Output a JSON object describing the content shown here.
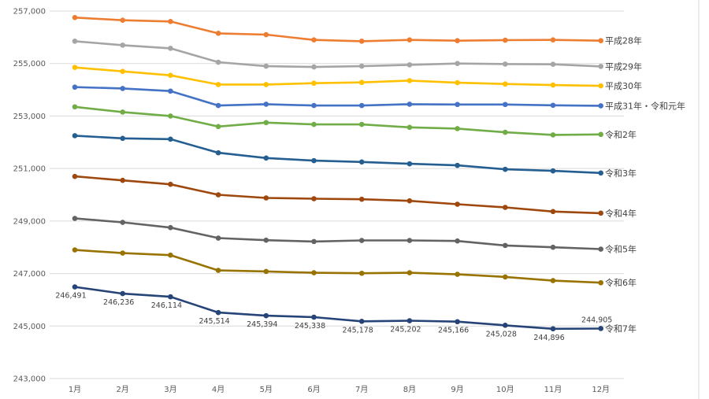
{
  "chart_data": {
    "type": "line",
    "title": "",
    "xlabel": "",
    "ylabel": "",
    "ylim": [
      243000,
      257000
    ],
    "yticks": [
      243000,
      245000,
      247000,
      249000,
      251000,
      253000,
      255000,
      257000
    ],
    "ytick_labels": [
      "243,000",
      "245,000",
      "247,000",
      "249,000",
      "251,000",
      "253,000",
      "255,000",
      "257,000"
    ],
    "grid": true,
    "legend": "inline-right",
    "categories": [
      "1月",
      "2月",
      "3月",
      "4月",
      "5月",
      "6月",
      "7月",
      "8月",
      "9月",
      "10月",
      "11月",
      "12月"
    ],
    "series": [
      {
        "name": "平成28年",
        "color": "#ED7D31",
        "values": [
          256750,
          256650,
          256600,
          256150,
          256100,
          255900,
          255850,
          255900,
          255870,
          255890,
          255900,
          255870
        ]
      },
      {
        "name": "平成29年",
        "color": "#A5A5A5",
        "values": [
          255850,
          255700,
          255580,
          255050,
          254900,
          254870,
          254900,
          254950,
          255000,
          254980,
          254970,
          254890
        ]
      },
      {
        "name": "平成30年",
        "color": "#FFC000",
        "values": [
          254850,
          254700,
          254550,
          254200,
          254200,
          254250,
          254280,
          254350,
          254270,
          254220,
          254180,
          254150
        ]
      },
      {
        "name": "平成31年・令和元年",
        "color": "#4472C4",
        "values": [
          254100,
          254050,
          253950,
          253400,
          253450,
          253400,
          253400,
          253450,
          253440,
          253440,
          253410,
          253390
        ]
      },
      {
        "name": "令和2年",
        "color": "#70AD47",
        "values": [
          253350,
          253150,
          253000,
          252600,
          252750,
          252680,
          252680,
          252570,
          252520,
          252380,
          252280,
          252300
        ]
      },
      {
        "name": "令和3年",
        "color": "#255E91",
        "values": [
          252250,
          252150,
          252120,
          251600,
          251400,
          251300,
          251250,
          251180,
          251120,
          250970,
          250910,
          250830
        ]
      },
      {
        "name": "令和4年",
        "color": "#9E480E",
        "values": [
          250700,
          250550,
          250400,
          250000,
          249880,
          249850,
          249830,
          249770,
          249640,
          249520,
          249360,
          249300
        ]
      },
      {
        "name": "令和5年",
        "color": "#636363",
        "values": [
          249100,
          248950,
          248750,
          248350,
          248270,
          248220,
          248260,
          248260,
          248240,
          248070,
          248000,
          247930
        ]
      },
      {
        "name": "令和6年",
        "color": "#997300",
        "values": [
          247900,
          247780,
          247700,
          247120,
          247080,
          247030,
          247010,
          247030,
          246970,
          246870,
          246730,
          246650
        ]
      },
      {
        "name": "令和7年",
        "color": "#264478",
        "values": [
          246491,
          246236,
          246114,
          245514,
          245394,
          245338,
          245178,
          245202,
          245166,
          245028,
          244896,
          244905
        ],
        "data_labels": [
          "246,491",
          "246,236",
          "246,114",
          "245,514",
          "245,394",
          "245,338",
          "245,178",
          "245,202",
          "245,166",
          "245,028",
          "244,896",
          "244,905"
        ]
      }
    ]
  }
}
